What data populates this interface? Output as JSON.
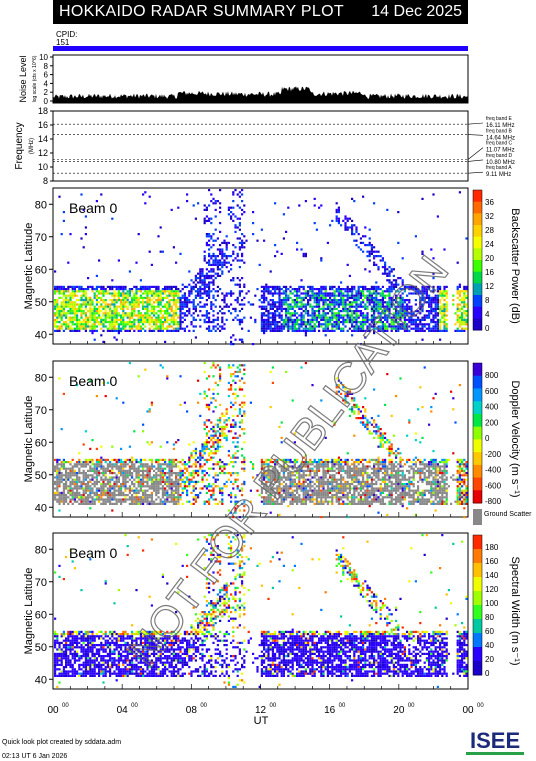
{
  "header": {
    "title": "HOKKAIDO RADAR SUMMARY PLOT",
    "date": "14 Dec 2025"
  },
  "cpid": {
    "label": "CPID:",
    "value": "151"
  },
  "noise": {
    "label_line1": "Noise Level",
    "label_line2": "log scale (cts x 10^6)",
    "ticks": [
      "10",
      "8",
      "6",
      "4",
      "2",
      "0"
    ],
    "ylim": [
      0,
      10
    ]
  },
  "frequency": {
    "label": "Frequency",
    "unit": "(MHz)",
    "ticks": [
      "18",
      "16",
      "14",
      "12",
      "10",
      "8"
    ],
    "ylim": [
      8,
      18
    ],
    "bands": [
      {
        "name": "freq band E",
        "value": "16.11 MHz",
        "mhz": 16.11
      },
      {
        "name": "freq band B",
        "value": "14.64 MHz",
        "mhz": 14.64
      },
      {
        "name": "freq band C",
        "value": "11.07 MHz",
        "mhz": 11.07
      },
      {
        "name": "freq band D",
        "value": "10.80 MHz",
        "mhz": 10.8
      },
      {
        "name": "freq band A",
        "value": "9.11 MHz",
        "mhz": 9.11
      }
    ]
  },
  "panels": [
    {
      "beam": "Beam 0",
      "ylabel": "Magnetic Latitude",
      "yticks": [
        "80",
        "70",
        "60",
        "50",
        "40"
      ],
      "ylim": [
        37,
        85
      ],
      "colorbar": {
        "label": "Backscatter Power (dB)",
        "ticks": [
          "36",
          "32",
          "28",
          "24",
          "20",
          "16",
          "12",
          "8",
          "4",
          "0"
        ],
        "colors": [
          "#ff2a00",
          "#ff6a00",
          "#ffa500",
          "#ffd200",
          "#f5ff00",
          "#b4ff00",
          "#3cff00",
          "#00d84a",
          "#00a0b4",
          "#0040ff",
          "#2800ff",
          "#1a00c8"
        ]
      }
    },
    {
      "beam": "Beam 0",
      "ylabel": "Magnetic Latitude",
      "yticks": [
        "80",
        "70",
        "60",
        "50",
        "40"
      ],
      "ylim": [
        37,
        85
      ],
      "colorbar": {
        "label": "Doppler Velocity (m s⁻¹)",
        "ticks": [
          "800",
          "600",
          "400",
          "200",
          "0",
          "-200",
          "-400",
          "-600",
          "-800"
        ],
        "colors": [
          "#3a00d8",
          "#0050ff",
          "#0096ff",
          "#00d2c8",
          "#00e646",
          "#8cff00",
          "#f0ff00",
          "#ffc800",
          "#ff8c00",
          "#ff4600",
          "#e60000"
        ],
        "ground_label": "Ground Scatter"
      }
    },
    {
      "beam": "Beam 0",
      "ylabel": "Magnetic Latitude",
      "yticks": [
        "80",
        "70",
        "60",
        "50",
        "40"
      ],
      "ylim": [
        37,
        85
      ],
      "colorbar": {
        "label": "Spectral Width (m s⁻¹)",
        "ticks": [
          "180",
          "160",
          "140",
          "120",
          "100",
          "80",
          "60",
          "40",
          "20",
          "0"
        ],
        "colors": [
          "#ff2a00",
          "#ff7a00",
          "#ffc000",
          "#f0ff00",
          "#a0ff00",
          "#30ff20",
          "#00c8a0",
          "#0078ff",
          "#2a00ff",
          "#1a00c8"
        ]
      }
    }
  ],
  "xaxis": {
    "label": "UT",
    "ticks": [
      {
        "h": "00",
        "m": "00"
      },
      {
        "h": "04",
        "m": "00"
      },
      {
        "h": "08",
        "m": "00"
      },
      {
        "h": "12",
        "m": "00"
      },
      {
        "h": "16",
        "m": "00"
      },
      {
        "h": "20",
        "m": "00"
      },
      {
        "h": "00",
        "m": "00"
      }
    ]
  },
  "footer": {
    "line1": "Quick look plot created by sddata.adm",
    "line2": "02:13 UT  6 Jan 2026",
    "logo": "ISEE"
  },
  "watermark": "NOT FOR PUBLICATION"
}
